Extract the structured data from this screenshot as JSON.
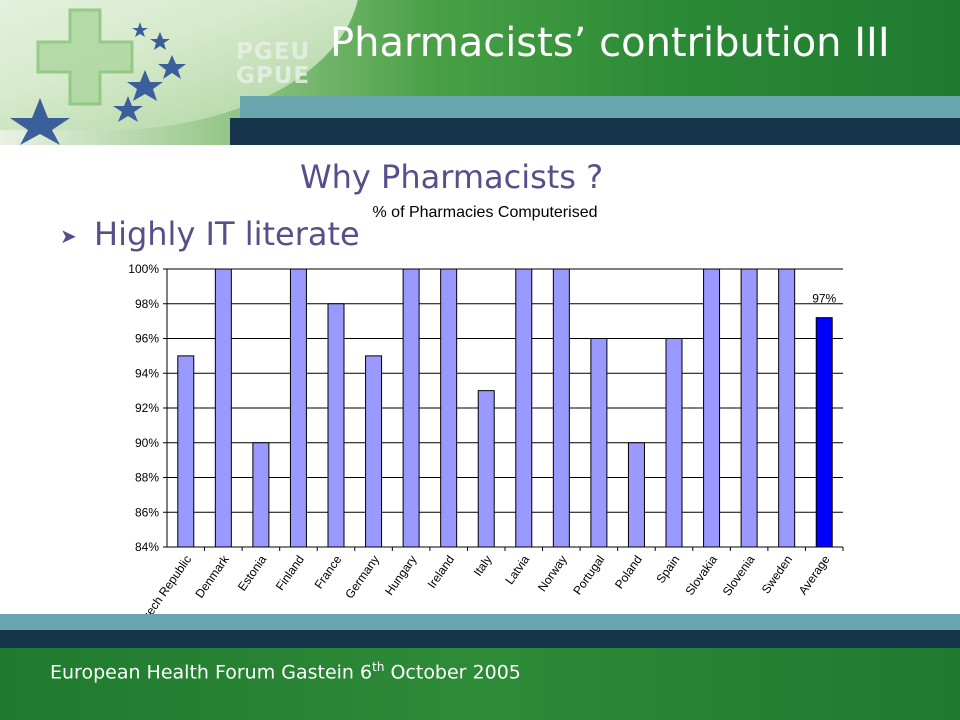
{
  "slide": {
    "title": "Pharmacists’ contribution III",
    "subtitle": "Why Pharmacists ?",
    "bullet": "Highly IT literate",
    "logo_line1": "PGEU",
    "logo_line2": "GPUE"
  },
  "footer": {
    "text_before": "European Health Forum Gastein 6",
    "superscript": "th",
    "text_after": " October 2005"
  },
  "colors": {
    "bar": "#9999ff",
    "highlight_bar": "#0000ff",
    "grid": "#000000"
  },
  "chart_data": {
    "type": "bar",
    "title": "% of Pharmacies Computerised",
    "xlabel": "",
    "ylabel": "",
    "ylim": [
      84,
      100
    ],
    "yticks": [
      84,
      86,
      88,
      90,
      92,
      94,
      96,
      98,
      100
    ],
    "ytick_format": "%",
    "grid": true,
    "categories": [
      "Czech Republic",
      "Denmark",
      "Estonia",
      "Finland",
      "France",
      "Germany",
      "Hungary",
      "Ireland",
      "Italy",
      "Latvia",
      "Norway",
      "Portugal",
      "Poland",
      "Spain",
      "Slovakia",
      "Slovenia",
      "Sweden",
      "Average"
    ],
    "values": [
      95,
      100,
      90,
      100,
      98,
      95,
      100,
      100,
      93,
      100,
      100,
      96,
      90,
      96,
      100,
      100,
      100,
      97.2
    ],
    "highlight_category": "Average",
    "data_labels": [
      {
        "category": "Average",
        "text": "97%"
      }
    ]
  }
}
